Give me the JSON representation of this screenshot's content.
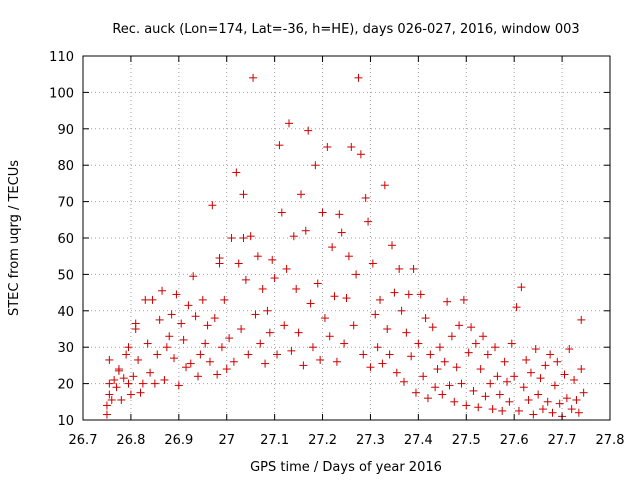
{
  "chart_data": {
    "type": "scatter",
    "title": "Rec. auck (Lon=174, Lat=-36, h=HE), days 026-027, 2016, window 003",
    "xlabel": "GPS time / Days of year 2016",
    "ylabel": "STEC from uqrg / TECUs",
    "xlim": [
      26.7,
      27.8
    ],
    "ylim": [
      10,
      110
    ],
    "xticks": [
      "26.7",
      "26.8",
      "26.9",
      "27",
      "27.1",
      "27.2",
      "27.3",
      "27.4",
      "27.5",
      "27.6",
      "27.7",
      "27.8"
    ],
    "yticks": [
      "10",
      "20",
      "30",
      "40",
      "50",
      "60",
      "70",
      "80",
      "90",
      "100",
      "110"
    ],
    "grid": true,
    "marker": "plus",
    "color": "#cc0000",
    "points": [
      [
        26.75,
        11.5
      ],
      [
        26.75,
        14
      ],
      [
        26.755,
        17
      ],
      [
        26.755,
        20
      ],
      [
        26.755,
        26.5
      ],
      [
        26.76,
        15.5
      ],
      [
        26.765,
        21
      ],
      [
        26.77,
        19
      ],
      [
        26.775,
        24
      ],
      [
        26.775,
        23.5
      ],
      [
        26.78,
        15.5
      ],
      [
        26.785,
        21.5
      ],
      [
        26.79,
        28
      ],
      [
        26.795,
        20
      ],
      [
        26.795,
        30
      ],
      [
        26.8,
        17
      ],
      [
        26.805,
        22
      ],
      [
        26.81,
        35
      ],
      [
        26.81,
        36.5
      ],
      [
        26.815,
        26.5
      ],
      [
        26.82,
        17.5
      ],
      [
        26.825,
        20
      ],
      [
        26.83,
        43
      ],
      [
        26.835,
        31
      ],
      [
        26.84,
        23
      ],
      [
        26.845,
        43
      ],
      [
        26.85,
        20
      ],
      [
        26.855,
        28
      ],
      [
        26.86,
        37.5
      ],
      [
        26.865,
        45.5
      ],
      [
        26.87,
        21
      ],
      [
        26.875,
        30
      ],
      [
        26.88,
        33
      ],
      [
        26.885,
        39
      ],
      [
        26.89,
        27
      ],
      [
        26.895,
        44.5
      ],
      [
        26.9,
        19.5
      ],
      [
        26.905,
        36.5
      ],
      [
        26.91,
        32
      ],
      [
        26.915,
        24.5
      ],
      [
        26.92,
        41.5
      ],
      [
        26.925,
        25.5
      ],
      [
        26.93,
        49.5
      ],
      [
        26.935,
        38.5
      ],
      [
        26.94,
        22
      ],
      [
        26.945,
        28
      ],
      [
        26.95,
        43
      ],
      [
        26.955,
        31
      ],
      [
        26.96,
        36
      ],
      [
        26.965,
        26
      ],
      [
        26.97,
        69
      ],
      [
        26.975,
        38
      ],
      [
        26.98,
        22.5
      ],
      [
        26.985,
        54.5
      ],
      [
        26.985,
        53
      ],
      [
        26.99,
        30
      ],
      [
        26.995,
        43
      ],
      [
        27.0,
        24
      ],
      [
        27.005,
        32.5
      ],
      [
        27.01,
        60
      ],
      [
        27.015,
        26
      ],
      [
        27.02,
        78
      ],
      [
        27.025,
        53
      ],
      [
        27.03,
        35
      ],
      [
        27.035,
        60
      ],
      [
        27.035,
        72
      ],
      [
        27.04,
        48.5
      ],
      [
        27.045,
        28
      ],
      [
        27.05,
        60.5
      ],
      [
        27.055,
        104
      ],
      [
        27.06,
        39
      ],
      [
        27.065,
        55
      ],
      [
        27.07,
        31
      ],
      [
        27.075,
        46
      ],
      [
        27.08,
        25.5
      ],
      [
        27.085,
        40
      ],
      [
        27.09,
        34
      ],
      [
        27.095,
        54
      ],
      [
        27.1,
        49
      ],
      [
        27.105,
        28
      ],
      [
        27.11,
        85.5
      ],
      [
        27.115,
        67
      ],
      [
        27.12,
        36
      ],
      [
        27.125,
        51.5
      ],
      [
        27.13,
        91.5
      ],
      [
        27.135,
        29
      ],
      [
        27.14,
        60.5
      ],
      [
        27.145,
        46
      ],
      [
        27.15,
        34
      ],
      [
        27.155,
        72
      ],
      [
        27.16,
        25
      ],
      [
        27.165,
        62
      ],
      [
        27.17,
        89.5
      ],
      [
        27.175,
        42
      ],
      [
        27.18,
        30
      ],
      [
        27.185,
        80
      ],
      [
        27.19,
        47.5
      ],
      [
        27.195,
        26.5
      ],
      [
        27.2,
        67
      ],
      [
        27.205,
        38
      ],
      [
        27.21,
        85
      ],
      [
        27.215,
        33
      ],
      [
        27.22,
        57.5
      ],
      [
        27.225,
        44
      ],
      [
        27.23,
        26
      ],
      [
        27.235,
        66.5
      ],
      [
        27.24,
        61.5
      ],
      [
        27.245,
        31
      ],
      [
        27.25,
        43.5
      ],
      [
        27.255,
        55
      ],
      [
        27.26,
        85
      ],
      [
        27.265,
        36
      ],
      [
        27.27,
        50
      ],
      [
        27.275,
        104
      ],
      [
        27.28,
        83
      ],
      [
        27.285,
        28
      ],
      [
        27.29,
        71
      ],
      [
        27.295,
        64.5
      ],
      [
        27.3,
        24.5
      ],
      [
        27.305,
        53
      ],
      [
        27.31,
        39
      ],
      [
        27.315,
        30
      ],
      [
        27.32,
        43
      ],
      [
        27.325,
        25.5
      ],
      [
        27.33,
        74.5
      ],
      [
        27.335,
        35
      ],
      [
        27.34,
        28
      ],
      [
        27.345,
        58
      ],
      [
        27.35,
        45
      ],
      [
        27.355,
        23
      ],
      [
        27.36,
        51.5
      ],
      [
        27.365,
        40
      ],
      [
        27.37,
        20.5
      ],
      [
        27.375,
        34
      ],
      [
        27.38,
        44.5
      ],
      [
        27.385,
        27.5
      ],
      [
        27.39,
        51.5
      ],
      [
        27.395,
        17.5
      ],
      [
        27.4,
        31
      ],
      [
        27.405,
        44.5
      ],
      [
        27.41,
        22
      ],
      [
        27.415,
        38
      ],
      [
        27.42,
        16
      ],
      [
        27.425,
        28
      ],
      [
        27.43,
        35.5
      ],
      [
        27.435,
        19
      ],
      [
        27.44,
        24
      ],
      [
        27.445,
        30
      ],
      [
        27.45,
        17
      ],
      [
        27.455,
        26
      ],
      [
        27.46,
        42.5
      ],
      [
        27.465,
        19.5
      ],
      [
        27.47,
        33
      ],
      [
        27.475,
        15
      ],
      [
        27.48,
        24.5
      ],
      [
        27.485,
        36
      ],
      [
        27.49,
        20
      ],
      [
        27.495,
        43
      ],
      [
        27.5,
        14
      ],
      [
        27.505,
        28.5
      ],
      [
        27.51,
        35.5
      ],
      [
        27.515,
        18
      ],
      [
        27.52,
        31
      ],
      [
        27.525,
        13.5
      ],
      [
        27.53,
        24
      ],
      [
        27.535,
        33
      ],
      [
        27.54,
        16.5
      ],
      [
        27.545,
        28
      ],
      [
        27.55,
        20
      ],
      [
        27.555,
        13
      ],
      [
        27.56,
        30
      ],
      [
        27.565,
        22
      ],
      [
        27.57,
        17
      ],
      [
        27.575,
        12.5
      ],
      [
        27.58,
        26
      ],
      [
        27.585,
        20.5
      ],
      [
        27.59,
        15
      ],
      [
        27.595,
        31
      ],
      [
        27.6,
        22
      ],
      [
        27.605,
        41
      ],
      [
        27.61,
        12.5
      ],
      [
        27.615,
        46.5
      ],
      [
        27.62,
        19
      ],
      [
        27.625,
        26.5
      ],
      [
        27.63,
        15.5
      ],
      [
        27.635,
        23
      ],
      [
        27.64,
        11.5
      ],
      [
        27.645,
        29.5
      ],
      [
        27.65,
        17
      ],
      [
        27.655,
        21.5
      ],
      [
        27.66,
        13
      ],
      [
        27.665,
        25
      ],
      [
        27.67,
        15
      ],
      [
        27.675,
        28
      ],
      [
        27.68,
        12
      ],
      [
        27.685,
        19.5
      ],
      [
        27.69,
        26
      ],
      [
        27.695,
        14.5
      ],
      [
        27.7,
        11
      ],
      [
        27.705,
        22.5
      ],
      [
        27.71,
        16
      ],
      [
        27.715,
        29.5
      ],
      [
        27.72,
        13
      ],
      [
        27.725,
        21
      ],
      [
        27.73,
        15.5
      ],
      [
        27.735,
        12
      ],
      [
        27.74,
        37.5
      ],
      [
        27.74,
        24
      ],
      [
        27.745,
        17.5
      ]
    ]
  }
}
